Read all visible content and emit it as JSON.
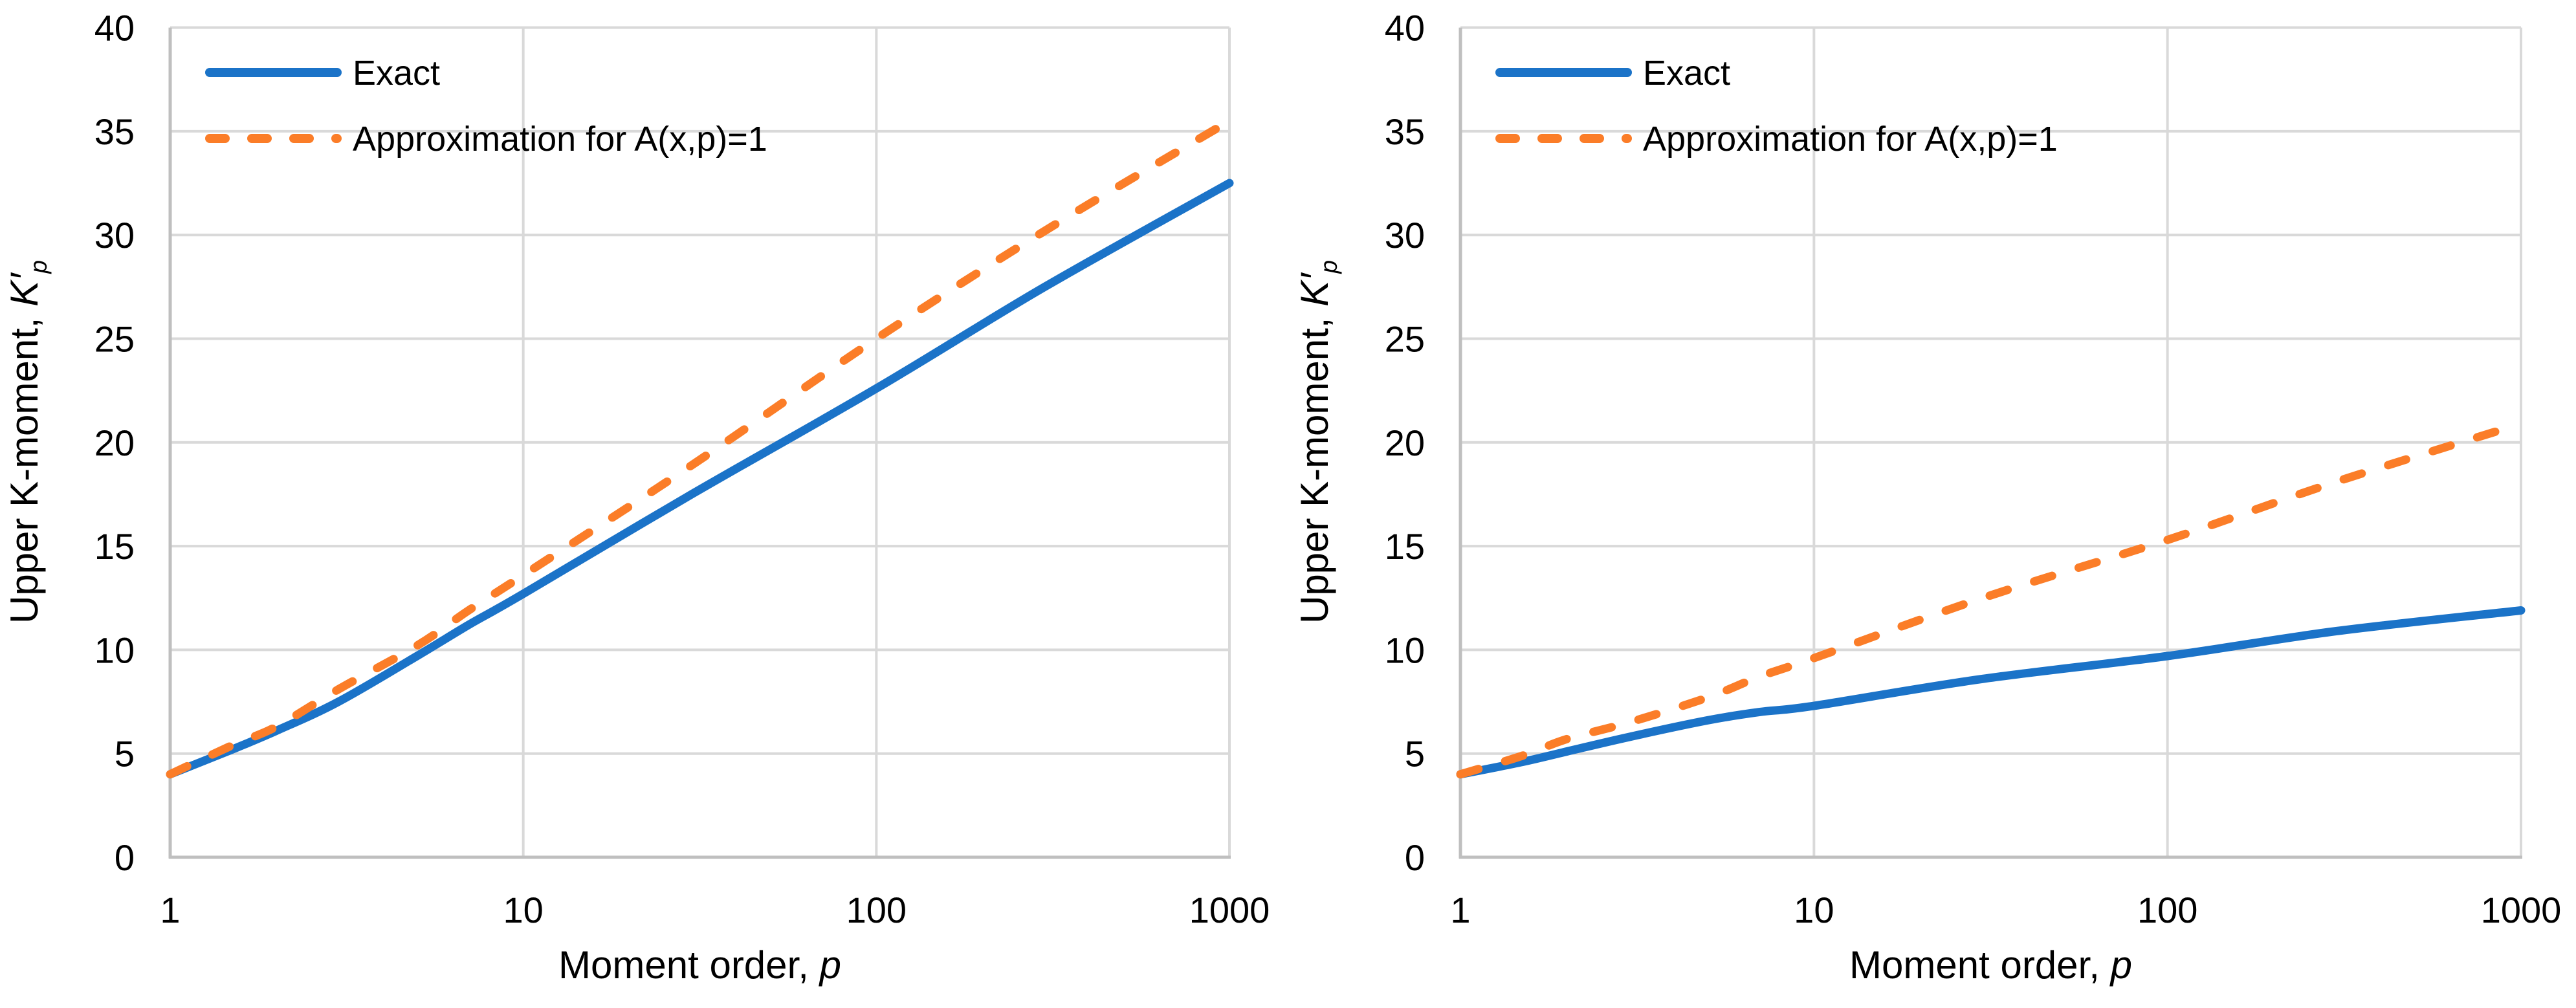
{
  "figure": {
    "background": "#FFFFFF"
  },
  "colors": {
    "exact": "#1B73C8",
    "approx": "#FB7D28",
    "gridline": "#D9D9D9",
    "axis": "#BFBFBF",
    "text": "#000000"
  },
  "chart_data": [
    {
      "type": "line",
      "title": "",
      "xlabel": {
        "text": "Moment order, ",
        "symbol": "p"
      },
      "ylabel": {
        "text": "Upper K-moment, ",
        "symbol": "K′",
        "subscript": "p"
      },
      "x_scale": "log",
      "xlim": [
        1,
        1000
      ],
      "ylim": [
        0,
        40
      ],
      "x_ticks": [
        "1",
        "10",
        "100",
        "1000"
      ],
      "y_ticks": [
        "0",
        "5",
        "10",
        "15",
        "20",
        "25",
        "30",
        "35",
        "40"
      ],
      "grid": true,
      "legend_position": "inside-top-left",
      "x": [
        1,
        1.5,
        2,
        3,
        5,
        7,
        10,
        30,
        100,
        300,
        1000
      ],
      "series": [
        {
          "name": "Exact",
          "style": "solid",
          "color": "#1B73C8",
          "values": [
            4.0,
            5.2,
            6.1,
            7.5,
            9.7,
            11.2,
            12.7,
            17.5,
            22.6,
            27.5,
            32.5
          ]
        },
        {
          "name": "Approximation for A(x,p)=1",
          "style": "dashed",
          "color": "#FB7D28",
          "values": [
            4.0,
            5.4,
            6.3,
            8.1,
            10.2,
            11.9,
            13.6,
            18.9,
            25.0,
            30.2,
            35.5
          ]
        }
      ]
    },
    {
      "type": "line",
      "title": "",
      "xlabel": {
        "text": "Moment order, ",
        "symbol": "p"
      },
      "ylabel": {
        "text": "Upper K-moment, ",
        "symbol": "K′",
        "subscript": "p"
      },
      "x_scale": "log",
      "xlim": [
        1,
        1000
      ],
      "ylim": [
        0,
        40
      ],
      "x_ticks": [
        "1",
        "10",
        "100",
        "1000"
      ],
      "y_ticks": [
        "0",
        "5",
        "10",
        "15",
        "20",
        "25",
        "30",
        "35",
        "40"
      ],
      "grid": true,
      "legend_position": "inside-top-left",
      "x": [
        1,
        1.5,
        2,
        3,
        5,
        7,
        10,
        30,
        100,
        300,
        1000
      ],
      "series": [
        {
          "name": "Exact",
          "style": "solid",
          "color": "#1B73C8",
          "values": [
            4.0,
            4.6,
            5.1,
            5.8,
            6.6,
            7.0,
            7.3,
            8.6,
            9.7,
            10.9,
            11.9
          ]
        },
        {
          "name": "Approximation for A(x,p)=1",
          "style": "dashed",
          "color": "#FB7D28",
          "values": [
            4.0,
            4.9,
            5.7,
            6.5,
            7.7,
            8.7,
            9.6,
            12.5,
            15.3,
            18.1,
            20.9
          ]
        }
      ]
    }
  ]
}
